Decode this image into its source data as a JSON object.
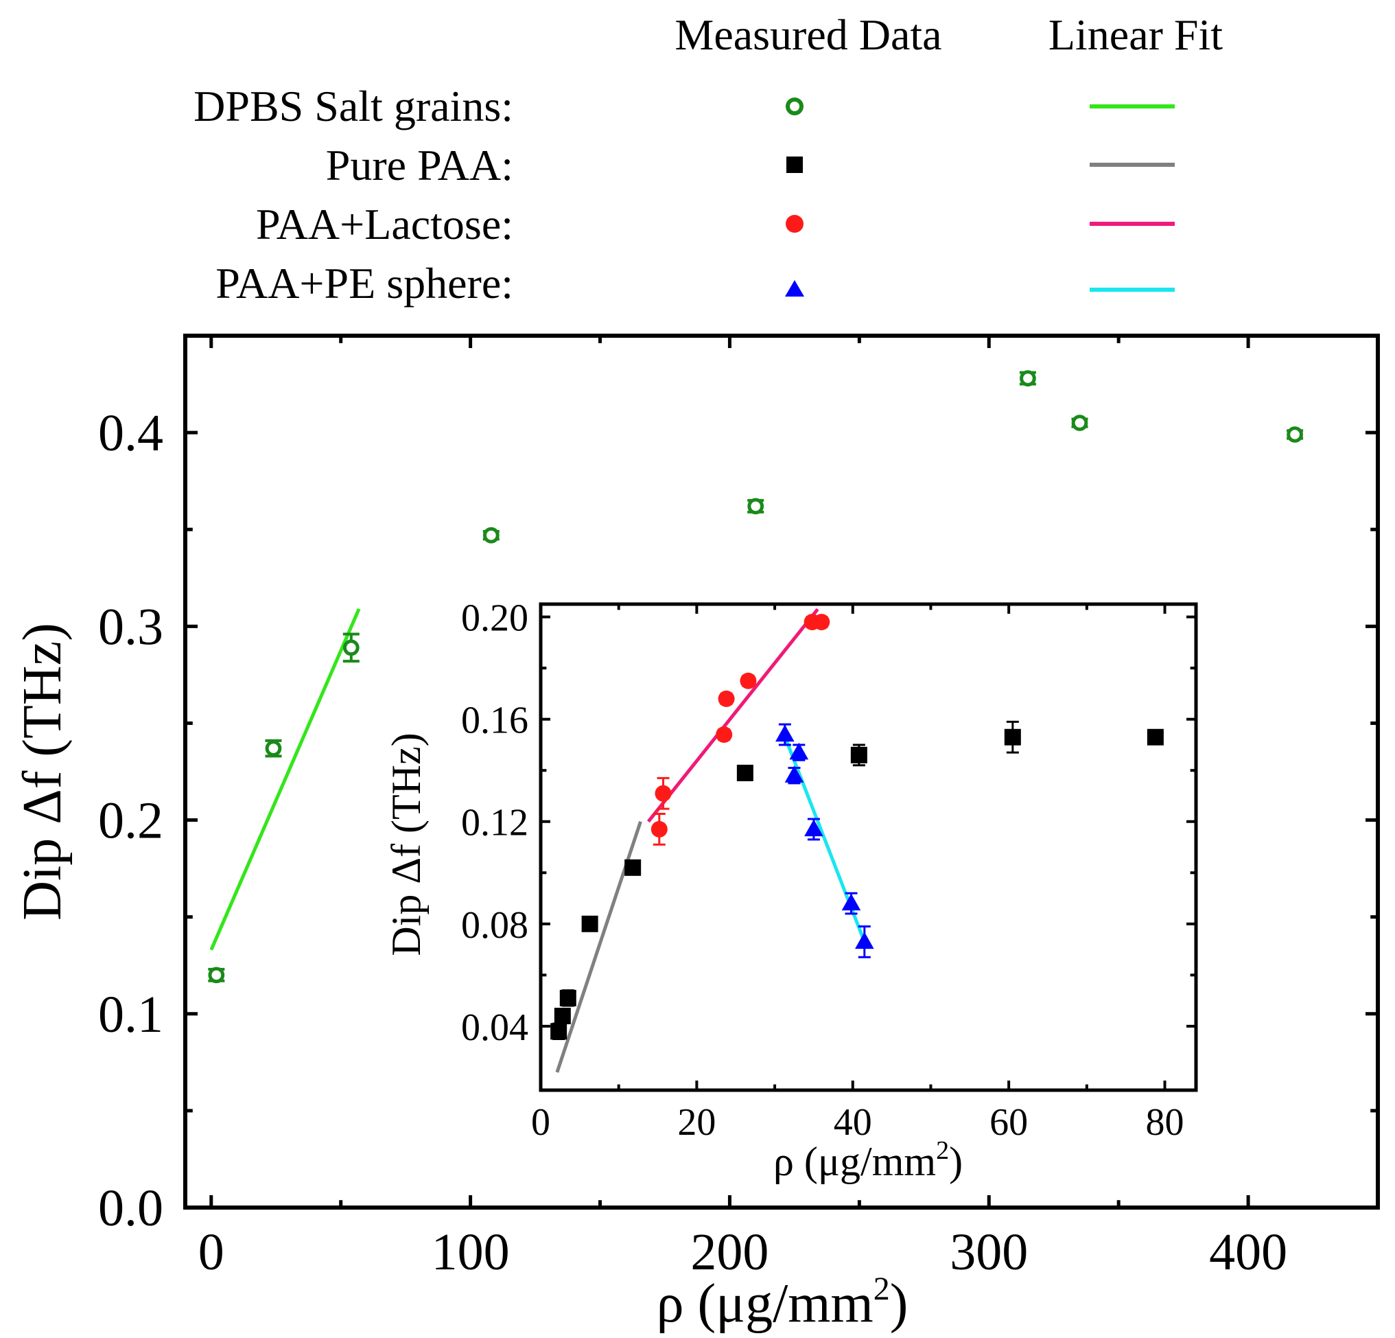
{
  "legend": {
    "header_measured": "Measured Data",
    "header_fit": "Linear Fit",
    "entries": [
      {
        "label": "DPBS Salt grains:",
        "marker": "open-circle",
        "marker_color": "#1a8a1a",
        "fit_color": "#33e61a"
      },
      {
        "label": "Pure PAA:",
        "marker": "square",
        "marker_color": "#000000",
        "fit_color": "#808080"
      },
      {
        "label": "PAA+Lactose:",
        "marker": "circle",
        "marker_color": "#ff1a1a",
        "fit_color": "#f01a78"
      },
      {
        "label": "PAA+PE sphere:",
        "marker": "triangle",
        "marker_color": "#0000ff",
        "fit_color": "#1ae6f0"
      }
    ]
  },
  "chart_data": [
    {
      "type": "scatter",
      "name": "main",
      "xlabel": "ρ (μg/mm",
      "xlabel_sup": "2",
      "xlabel_close": ")",
      "ylabel": "Dip Δf (THz)",
      "xlim": [
        -10,
        450
      ],
      "ylim": [
        0.0,
        0.45
      ],
      "xticks": [
        0,
        100,
        200,
        300,
        400
      ],
      "xtick_labels": [
        "0",
        "100",
        "200",
        "300",
        "400"
      ],
      "yticks": [
        0.0,
        0.1,
        0.2,
        0.3,
        0.4
      ],
      "ytick_labels": [
        "0.0",
        "0.1",
        "0.2",
        "0.3",
        "0.4"
      ],
      "series": [
        {
          "name": "DPBS Salt grains",
          "marker": "open-circle",
          "color": "#1a8a1a",
          "x": [
            2,
            24,
            54,
            108,
            210,
            315,
            335,
            418
          ],
          "y": [
            0.12,
            0.237,
            0.289,
            0.347,
            0.362,
            0.428,
            0.405,
            0.399
          ],
          "yerr": [
            0.003,
            0.004,
            0.007,
            0.002,
            0.003,
            0.003,
            0.002,
            0.002
          ],
          "xerr": [
            3,
            3,
            3,
            3,
            3,
            3,
            3,
            3
          ]
        }
      ],
      "fits": [
        {
          "name": "DPBS Salt grains fit",
          "color": "#33e61a",
          "x": [
            0,
            57
          ],
          "y": [
            0.133,
            0.309
          ]
        }
      ]
    },
    {
      "type": "scatter",
      "name": "inset",
      "xlabel": "ρ (μg/mm",
      "xlabel_sup": "2",
      "xlabel_close": ")",
      "ylabel": "Dip Δf (THz)",
      "xlim": [
        0,
        84
      ],
      "ylim": [
        0.015,
        0.205
      ],
      "xticks": [
        0,
        20,
        40,
        60,
        80
      ],
      "xtick_labels": [
        "0",
        "20",
        "40",
        "60",
        "80"
      ],
      "yticks": [
        0.04,
        0.08,
        0.12,
        0.16,
        0.2
      ],
      "ytick_labels": [
        "0.04",
        "0.08",
        "0.12",
        "0.16",
        "0.20"
      ],
      "series": [
        {
          "name": "Pure PAA",
          "marker": "square",
          "color": "#000000",
          "x": [
            2.3,
            2.8,
            3.5,
            6.3,
            11.8,
            26.2,
            40.8,
            60.5,
            78.8
          ],
          "y": [
            0.038,
            0.044,
            0.051,
            0.08,
            0.102,
            0.139,
            0.146,
            0.153,
            0.153
          ],
          "yerr": [
            0.003,
            0.002,
            0.003,
            0.002,
            0.002,
            0.002,
            0.004,
            0.006,
            0.002
          ]
        },
        {
          "name": "PAA+Lactose",
          "marker": "circle",
          "color": "#ff1a1a",
          "x": [
            15.2,
            15.7,
            23.5,
            23.8,
            26.6,
            34.8,
            36.0
          ],
          "y": [
            0.117,
            0.131,
            0.154,
            0.168,
            0.175,
            0.198,
            0.198
          ],
          "yerr": [
            0.006,
            0.006,
            0.002,
            0.002,
            0.002,
            0.002,
            0.002
          ]
        },
        {
          "name": "PAA+PE sphere",
          "marker": "triangle",
          "color": "#0000ff",
          "x": [
            31.3,
            32.5,
            33.1,
            35.0,
            39.8,
            41.5
          ],
          "y": [
            0.154,
            0.138,
            0.147,
            0.117,
            0.088,
            0.073
          ],
          "yerr": [
            0.004,
            0.003,
            0.003,
            0.004,
            0.004,
            0.006
          ]
        }
      ],
      "fits": [
        {
          "name": "Pure PAA fit",
          "color": "#808080",
          "x": [
            2.1,
            12.8
          ],
          "y": [
            0.022,
            0.12
          ]
        },
        {
          "name": "PAA+Lactose fit",
          "color": "#f01a78",
          "x": [
            13.8,
            35.5
          ],
          "y": [
            0.12,
            0.203
          ]
        },
        {
          "name": "PAA+PE sphere fit",
          "color": "#1ae6f0",
          "x": [
            31.2,
            41.5
          ],
          "y": [
            0.154,
            0.073
          ]
        }
      ]
    }
  ]
}
